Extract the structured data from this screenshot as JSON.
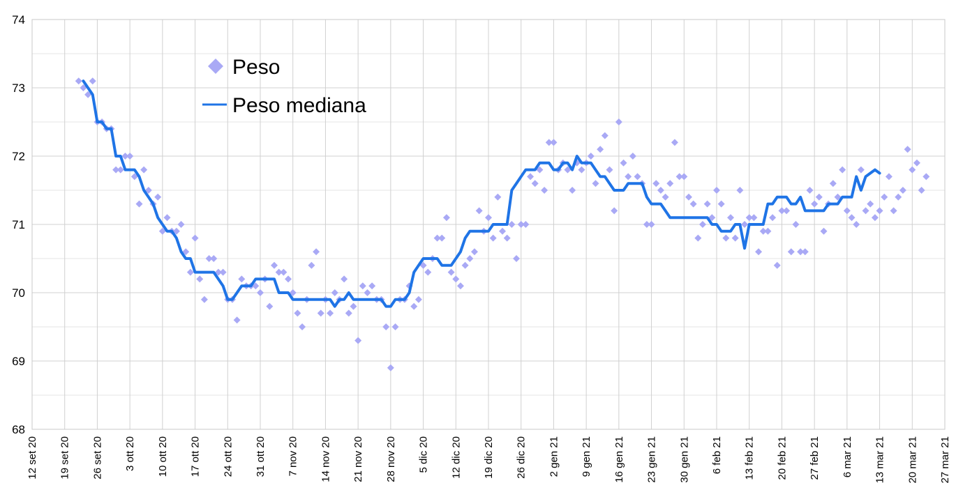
{
  "chart_data": {
    "type": "line",
    "title": "",
    "xlabel": "",
    "ylabel": "",
    "ylim": [
      68,
      74
    ],
    "yticks": [
      "68",
      "69",
      "70",
      "71",
      "72",
      "73",
      "74"
    ],
    "xticks": [
      "12 set 20",
      "19 set 20",
      "26 set 20",
      "3 ott 20",
      "10 ott 20",
      "17 ott 20",
      "24 ott 20",
      "31 ott 20",
      "7 nov 20",
      "14 nov 20",
      "21 nov 20",
      "28 nov 20",
      "5 dic 20",
      "12 dic 20",
      "19 dic 20",
      "26 dic 20",
      "2 gen 21",
      "9 gen 21",
      "16 gen 21",
      "23 gen 21",
      "30 gen 21",
      "6 feb 21",
      "13 feb 21",
      "20 feb 21",
      "27 feb 21",
      "6 mar 21",
      "13 mar 21",
      "20 mar 21",
      "27 mar 21"
    ],
    "x_start": "2020-09-12",
    "x_end": "2021-03-27",
    "grid": true,
    "legend_position": "top-left",
    "colors": {
      "peso": "#a9a9f5",
      "mediana": "#1f74e6"
    },
    "series": [
      {
        "name": "Peso",
        "kind": "scatter",
        "x_start": "2020-09-22",
        "values": [
          73.1,
          73.0,
          72.9,
          73.1,
          72.5,
          72.5,
          72.4,
          72.4,
          71.8,
          71.8,
          72.0,
          72.0,
          71.7,
          71.3,
          71.8,
          71.5,
          71.3,
          71.4,
          70.9,
          71.1,
          70.9,
          70.9,
          71.0,
          70.6,
          70.3,
          70.8,
          70.2,
          69.9,
          70.5,
          70.5,
          70.3,
          70.3,
          69.9,
          69.9,
          69.6,
          70.2,
          70.1,
          70.1,
          70.1,
          70.0,
          70.2,
          69.8,
          70.4,
          70.3,
          70.3,
          70.2,
          70.0,
          69.7,
          69.5,
          69.9,
          70.4,
          70.6,
          69.7,
          69.9,
          69.7,
          70.0,
          69.9,
          70.2,
          69.7,
          69.8,
          69.3,
          70.1,
          70.0,
          70.1,
          69.9,
          69.9,
          69.5,
          68.9,
          69.5,
          69.9,
          69.9,
          70.1,
          69.8,
          69.9,
          70.4,
          70.3,
          70.5,
          70.8,
          70.8,
          71.1,
          70.3,
          70.2,
          70.1,
          70.4,
          70.5,
          70.6,
          71.2,
          70.9,
          71.1,
          70.8,
          71.4,
          70.9,
          70.8,
          71.0,
          70.5,
          71.0,
          71.0,
          71.7,
          71.6,
          71.8,
          71.5,
          72.2,
          72.2,
          71.8,
          71.9,
          71.8,
          71.5,
          71.9,
          71.8,
          71.9,
          72.0,
          71.6,
          72.1,
          72.3,
          71.8,
          71.2,
          72.5,
          71.9,
          71.7,
          72.0,
          71.7,
          71.6,
          71.0,
          71.0,
          71.6,
          71.5,
          71.4,
          71.6,
          72.2,
          71.7,
          71.7,
          71.4,
          71.3,
          70.8,
          71.0,
          71.3,
          71.1,
          71.5,
          71.3,
          70.8,
          71.1,
          70.8,
          71.5,
          71.0,
          71.1,
          71.1,
          70.6,
          70.9,
          70.9,
          71.1,
          70.4,
          71.2,
          71.2,
          70.6,
          71.0,
          70.6,
          70.6,
          71.5,
          71.3,
          71.4,
          70.9,
          71.3,
          71.6,
          71.4,
          71.8,
          71.2,
          71.1,
          71.0,
          71.8,
          71.2,
          71.3,
          71.1,
          71.2,
          71.4,
          71.7,
          71.2,
          71.4,
          71.5,
          72.1,
          71.8,
          71.9,
          71.5,
          71.7
        ]
      },
      {
        "name": "Peso mediana",
        "kind": "line",
        "x_start": "2020-09-23",
        "values": [
          73.1,
          73.0,
          72.9,
          72.5,
          72.5,
          72.4,
          72.4,
          72.0,
          72.0,
          71.8,
          71.8,
          71.8,
          71.7,
          71.5,
          71.4,
          71.3,
          71.1,
          71.0,
          70.9,
          70.9,
          70.8,
          70.6,
          70.5,
          70.5,
          70.3,
          70.3,
          70.3,
          70.3,
          70.3,
          70.2,
          70.1,
          69.9,
          69.9,
          70.0,
          70.1,
          70.1,
          70.1,
          70.2,
          70.2,
          70.2,
          70.2,
          70.2,
          70.0,
          70.0,
          70.0,
          69.9,
          69.9,
          69.9,
          69.9,
          69.9,
          69.9,
          69.9,
          69.9,
          69.9,
          69.8,
          69.9,
          69.9,
          70.0,
          69.9,
          69.9,
          69.9,
          69.9,
          69.9,
          69.9,
          69.9,
          69.8,
          69.8,
          69.9,
          69.9,
          69.9,
          70.0,
          70.3,
          70.4,
          70.5,
          70.5,
          70.5,
          70.5,
          70.4,
          70.4,
          70.4,
          70.5,
          70.6,
          70.8,
          70.9,
          70.9,
          70.9,
          70.9,
          70.9,
          71.0,
          71.0,
          71.0,
          71.0,
          71.5,
          71.6,
          71.7,
          71.8,
          71.8,
          71.8,
          71.9,
          71.9,
          71.9,
          71.8,
          71.8,
          71.9,
          71.9,
          71.8,
          72.0,
          71.9,
          71.9,
          71.9,
          71.8,
          71.7,
          71.7,
          71.6,
          71.5,
          71.5,
          71.5,
          71.6,
          71.6,
          71.6,
          71.6,
          71.4,
          71.3,
          71.3,
          71.3,
          71.2,
          71.1,
          71.1,
          71.1,
          71.1,
          71.1,
          71.1,
          71.1,
          71.1,
          71.1,
          71.0,
          71.0,
          70.9,
          70.9,
          70.9,
          71.0,
          71.0,
          70.65,
          71.0,
          71.0,
          71.0,
          71.0,
          71.3,
          71.3,
          71.4,
          71.4,
          71.4,
          71.3,
          71.3,
          71.4,
          71.2,
          71.2,
          71.2,
          71.2,
          71.2,
          71.3,
          71.3,
          71.3,
          71.4,
          71.4,
          71.4,
          71.7,
          71.5,
          71.7,
          71.75,
          71.8,
          71.75
        ]
      }
    ]
  },
  "legend": {
    "peso_label": "Peso",
    "mediana_label": "Peso mediana"
  }
}
